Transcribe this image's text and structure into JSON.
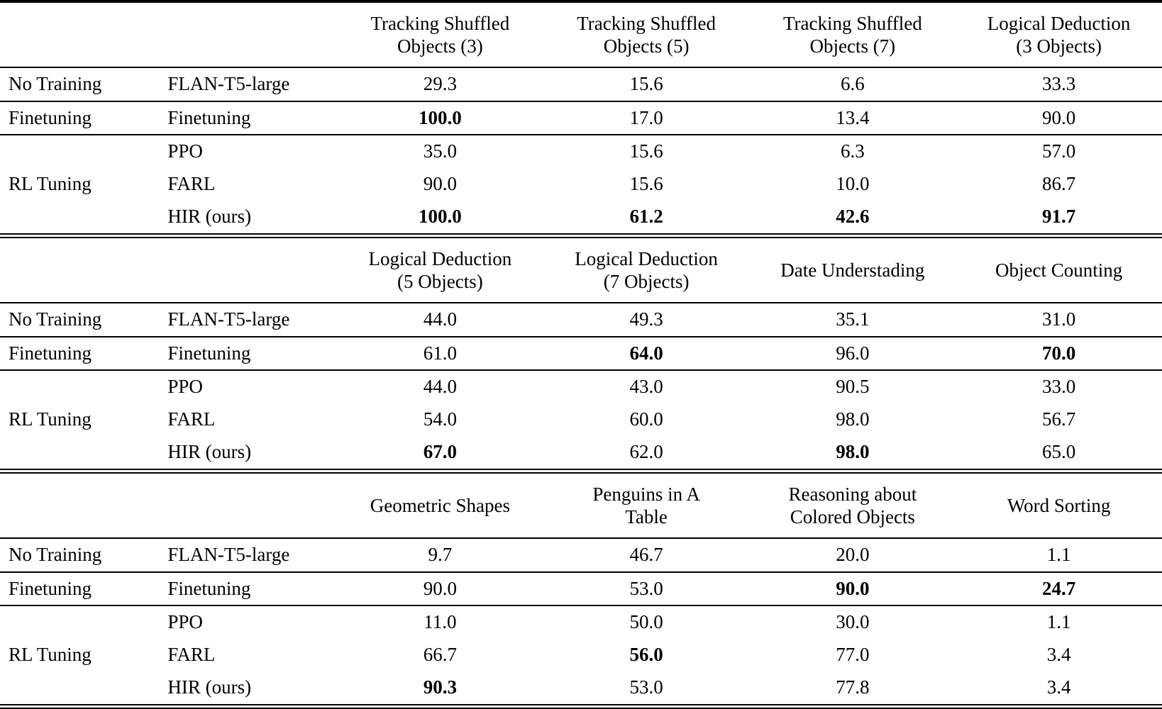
{
  "page": {
    "background_color": "#ffffff",
    "text_color": "#000000",
    "rule_color": "#000000"
  },
  "chart_data": {
    "type": "table"
  },
  "tables": [
    {
      "columns": [
        "Tracking Shuffled\nObjects (3)",
        "Tracking Shuffled\nObjects (5)",
        "Tracking Shuffled\nObjects (7)",
        "Logical Deduction\n(3 Objects)"
      ],
      "groups": [
        {
          "group": "No Training",
          "rows": [
            {
              "method": "FLAN-T5-large",
              "values": [
                "29.3",
                "15.6",
                "6.6",
                "33.3"
              ],
              "bold": [
                false,
                false,
                false,
                false
              ]
            }
          ]
        },
        {
          "group": "Finetuning",
          "rows": [
            {
              "method": "Finetuning",
              "values": [
                "100.0",
                "17.0",
                "13.4",
                "90.0"
              ],
              "bold": [
                true,
                false,
                false,
                false
              ]
            }
          ]
        },
        {
          "group": "RL Tuning",
          "rows": [
            {
              "method": "PPO",
              "values": [
                "35.0",
                "15.6",
                "6.3",
                "57.0"
              ],
              "bold": [
                false,
                false,
                false,
                false
              ]
            },
            {
              "method": "FARL",
              "values": [
                "90.0",
                "15.6",
                "10.0",
                "86.7"
              ],
              "bold": [
                false,
                false,
                false,
                false
              ]
            },
            {
              "method": "HIR (ours)",
              "values": [
                "100.0",
                "61.2",
                "42.6",
                "91.7"
              ],
              "bold": [
                true,
                true,
                true,
                true
              ]
            }
          ]
        }
      ]
    },
    {
      "columns": [
        "Logical Deduction\n(5 Objects)",
        "Logical Deduction\n(7 Objects)",
        "Date Understading",
        "Object Counting"
      ],
      "groups": [
        {
          "group": "No Training",
          "rows": [
            {
              "method": "FLAN-T5-large",
              "values": [
                "44.0",
                "49.3",
                "35.1",
                "31.0"
              ],
              "bold": [
                false,
                false,
                false,
                false
              ]
            }
          ]
        },
        {
          "group": "Finetuning",
          "rows": [
            {
              "method": "Finetuning",
              "values": [
                "61.0",
                "64.0",
                "96.0",
                "70.0"
              ],
              "bold": [
                false,
                true,
                false,
                true
              ]
            }
          ]
        },
        {
          "group": "RL Tuning",
          "rows": [
            {
              "method": "PPO",
              "values": [
                "44.0",
                "43.0",
                "90.5",
                "33.0"
              ],
              "bold": [
                false,
                false,
                false,
                false
              ]
            },
            {
              "method": "FARL",
              "values": [
                "54.0",
                "60.0",
                "98.0",
                "56.7"
              ],
              "bold": [
                false,
                false,
                false,
                false
              ]
            },
            {
              "method": "HIR (ours)",
              "values": [
                "67.0",
                "62.0",
                "98.0",
                "65.0"
              ],
              "bold": [
                true,
                false,
                true,
                false
              ]
            }
          ]
        }
      ]
    },
    {
      "columns": [
        "Geometric Shapes",
        "Penguins in A\nTable",
        "Reasoning about\nColored Objects",
        "Word Sorting"
      ],
      "groups": [
        {
          "group": "No Training",
          "rows": [
            {
              "method": "FLAN-T5-large",
              "values": [
                "9.7",
                "46.7",
                "20.0",
                "1.1"
              ],
              "bold": [
                false,
                false,
                false,
                false
              ]
            }
          ]
        },
        {
          "group": "Finetuning",
          "rows": [
            {
              "method": "Finetuning",
              "values": [
                "90.0",
                "53.0",
                "90.0",
                "24.7"
              ],
              "bold": [
                false,
                false,
                true,
                true
              ]
            }
          ]
        },
        {
          "group": "RL Tuning",
          "rows": [
            {
              "method": "PPO",
              "values": [
                "11.0",
                "50.0",
                "30.0",
                "1.1"
              ],
              "bold": [
                false,
                false,
                false,
                false
              ]
            },
            {
              "method": "FARL",
              "values": [
                "66.7",
                "56.0",
                "77.0",
                "3.4"
              ],
              "bold": [
                false,
                true,
                false,
                false
              ]
            },
            {
              "method": "HIR (ours)",
              "values": [
                "90.3",
                "53.0",
                "77.8",
                "3.4"
              ],
              "bold": [
                true,
                false,
                false,
                false
              ]
            }
          ]
        }
      ]
    }
  ]
}
